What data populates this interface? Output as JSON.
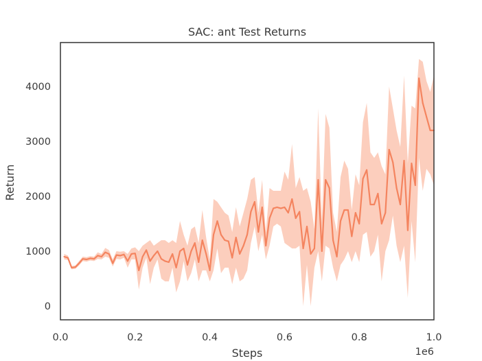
{
  "chart_data": {
    "type": "line",
    "title": "SAC: ant Test Returns",
    "xlabel": "Steps",
    "ylabel": "Return",
    "x_offset_label": "1e6",
    "xlim": [
      0,
      1.0
    ],
    "ylim": [
      -250,
      4800
    ],
    "x_ticks": [
      0.0,
      0.2,
      0.4,
      0.6,
      0.8,
      1.0
    ],
    "x_tick_labels": [
      "0.0",
      "0.2",
      "0.4",
      "0.6",
      "0.8",
      "1.0"
    ],
    "y_ticks": [
      0,
      1000,
      2000,
      3000,
      4000
    ],
    "y_tick_labels": [
      "0",
      "1000",
      "2000",
      "3000",
      "4000"
    ],
    "grid": false,
    "colors": {
      "line": "#f4845f",
      "band": "#fcc6b2",
      "axes": "#333333"
    },
    "series": [
      {
        "x": [
          0.01,
          0.02,
          0.03,
          0.04,
          0.05,
          0.06,
          0.07,
          0.08,
          0.09,
          0.1,
          0.11,
          0.12,
          0.13,
          0.14,
          0.15,
          0.16,
          0.17,
          0.18,
          0.19,
          0.2,
          0.21,
          0.22,
          0.23,
          0.24,
          0.25,
          0.26,
          0.27,
          0.28,
          0.29,
          0.3,
          0.31,
          0.32,
          0.33,
          0.34,
          0.35,
          0.36,
          0.37,
          0.38,
          0.39,
          0.4,
          0.41,
          0.42,
          0.43,
          0.44,
          0.45,
          0.46,
          0.47,
          0.48,
          0.49,
          0.5,
          0.51,
          0.52,
          0.53,
          0.54,
          0.55,
          0.56,
          0.57,
          0.58,
          0.59,
          0.6,
          0.61,
          0.62,
          0.63,
          0.64,
          0.65,
          0.66,
          0.67,
          0.68,
          0.69,
          0.7,
          0.71,
          0.72,
          0.73,
          0.74,
          0.75,
          0.76,
          0.77,
          0.78,
          0.79,
          0.8,
          0.81,
          0.82,
          0.83,
          0.84,
          0.85,
          0.86,
          0.87,
          0.88,
          0.89,
          0.9,
          0.91,
          0.92,
          0.93,
          0.94,
          0.95,
          0.96,
          0.97,
          0.98,
          0.99,
          1.0
        ],
        "y": [
          900,
          880,
          700,
          710,
          780,
          860,
          850,
          870,
          860,
          920,
          900,
          980,
          950,
          780,
          930,
          920,
          940,
          820,
          950,
          960,
          650,
          900,
          1020,
          820,
          920,
          1000,
          860,
          820,
          800,
          950,
          700,
          1000,
          1050,
          750,
          1000,
          1150,
          800,
          1200,
          950,
          650,
          1300,
          1550,
          1300,
          1200,
          1180,
          880,
          1250,
          950,
          1100,
          1300,
          1720,
          1900,
          1350,
          1800,
          1100,
          1600,
          1780,
          1800,
          1780,
          1800,
          1700,
          1950,
          1600,
          1720,
          1050,
          1450,
          950,
          1050,
          2300,
          1000,
          2300,
          2150,
          1200,
          900,
          1550,
          1750,
          1750,
          1270,
          1700,
          1500,
          2320,
          2480,
          1850,
          1850,
          2050,
          1500,
          1700,
          2850,
          2620,
          2150,
          1850,
          2650,
          1380,
          2600,
          2200,
          4150,
          3700,
          3450,
          3200,
          3200
        ],
        "lower": [
          850,
          840,
          670,
          680,
          740,
          820,
          810,
          830,
          820,
          860,
          850,
          900,
          880,
          720,
          860,
          850,
          880,
          700,
          850,
          850,
          300,
          700,
          880,
          400,
          700,
          850,
          500,
          450,
          450,
          700,
          250,
          450,
          820,
          450,
          600,
          850,
          450,
          650,
          650,
          450,
          650,
          1050,
          600,
          700,
          700,
          400,
          700,
          450,
          500,
          650,
          1150,
          1450,
          1000,
          1300,
          850,
          1100,
          1450,
          1500,
          1450,
          1150,
          1100,
          1050,
          1050,
          1100,
          0,
          750,
          0,
          700,
          1000,
          450,
          1100,
          1050,
          700,
          450,
          750,
          850,
          1000,
          800,
          1000,
          800,
          1300,
          1350,
          900,
          1000,
          1300,
          450,
          1000,
          1200,
          1650,
          1100,
          800,
          1100,
          150,
          1550,
          800,
          2700,
          2100,
          2500,
          2400,
          2200
        ],
        "upper": [
          950,
          920,
          730,
          740,
          820,
          900,
          890,
          910,
          900,
          980,
          950,
          1060,
          1020,
          850,
          1000,
          990,
          1000,
          950,
          1050,
          1070,
          1000,
          1100,
          1150,
          1200,
          1100,
          1150,
          1200,
          1200,
          1150,
          1200,
          1150,
          1550,
          1300,
          1100,
          1400,
          1450,
          1150,
          1750,
          1250,
          850,
          1950,
          1900,
          1800,
          1700,
          1650,
          1350,
          1800,
          1450,
          1700,
          1950,
          2300,
          2350,
          1700,
          2300,
          1350,
          2150,
          2100,
          2100,
          2100,
          2450,
          2300,
          2950,
          2150,
          2350,
          2100,
          2150,
          1900,
          1400,
          3600,
          1550,
          3500,
          3250,
          1700,
          1350,
          2350,
          2650,
          2500,
          1750,
          2400,
          2200,
          3350,
          3700,
          2800,
          2700,
          2800,
          2550,
          2400,
          4000,
          3600,
          3200,
          2900,
          4200,
          2600,
          3650,
          3600,
          4500,
          4450,
          4100,
          3900,
          4200
        ]
      }
    ]
  }
}
